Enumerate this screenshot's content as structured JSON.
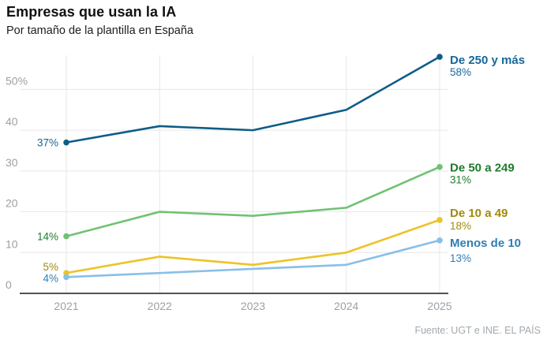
{
  "header": {
    "title": "Empresas que usan la IA",
    "subtitle": "Por tamaño de la plantilla en España"
  },
  "source": "Fuente: UGT e INE. EL PAÍS",
  "colors": {
    "axis_line": "#1c1c1c",
    "gridline": "#e7e7e7",
    "tick_label": "#9ba1a6",
    "source_text": "#a3a9ae",
    "background": "#ffffff"
  },
  "chart_data": {
    "type": "line",
    "title": "Empresas que usan la IA",
    "subtitle": "Por tamaño de la plantilla en España",
    "x_labels": [
      "2021",
      "2022",
      "2023",
      "2024",
      "2025"
    ],
    "y_ticks": [
      {
        "value": 0,
        "label": "0"
      },
      {
        "value": 10,
        "label": "10"
      },
      {
        "value": 20,
        "label": "20"
      },
      {
        "value": 30,
        "label": "30"
      },
      {
        "value": 40,
        "label": "40"
      },
      {
        "value": 50,
        "label": "50%"
      }
    ],
    "ylim": [
      0,
      58
    ],
    "grid": "light gray horizontal and vertical gridlines, dark bottom axis",
    "legend_position": "right of line endpoints",
    "series": [
      {
        "name": "De 250 y más",
        "values": [
          37,
          41,
          40,
          45,
          58
        ],
        "start_label": "37%",
        "end_label": "58%",
        "line_color": "#0e5d87",
        "text_color": "#17689a"
      },
      {
        "name": "De 50 a 249",
        "values": [
          14,
          20,
          19,
          21,
          31
        ],
        "start_label": "14%",
        "end_label": "31%",
        "line_color": "#70c272",
        "text_color": "#1e7b2d"
      },
      {
        "name": "De 10 a 49",
        "values": [
          5,
          9,
          7,
          10,
          18
        ],
        "start_label": "5%",
        "end_label": "18%",
        "line_color": "#edc327",
        "text_color": "#a28a0a"
      },
      {
        "name": "Menos de 10",
        "values": [
          4,
          5,
          6,
          7,
          13
        ],
        "start_label": "4%",
        "end_label": "13%",
        "line_color": "#88bfe9",
        "text_color": "#2f7db3"
      }
    ]
  }
}
